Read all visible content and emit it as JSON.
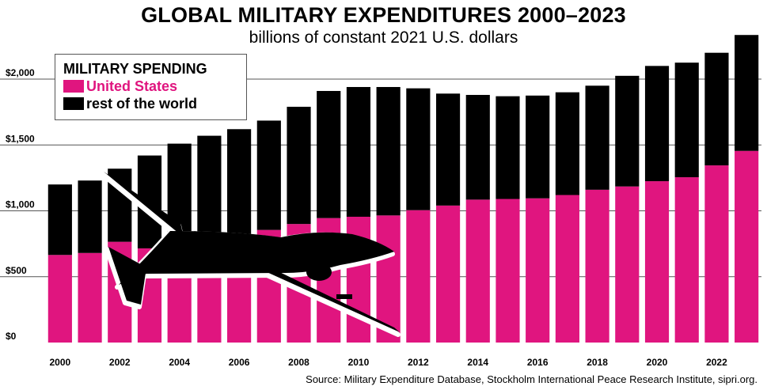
{
  "title": "GLOBAL MILITARY EXPENDITURES 2000–2023",
  "subtitle": "billions of constant 2021 U.S. dollars",
  "source": "Source: Military Expenditure Database, Stockholm International Peace Research Institute, sipri.org.",
  "legend": {
    "title": "MILITARY SPENDING",
    "items": [
      {
        "label": "United States",
        "color": "#e0157f"
      },
      {
        "label": "rest of the world",
        "color": "#000000"
      }
    ]
  },
  "colors": {
    "us": "#e0157f",
    "rest": "#000000"
  },
  "decoration": "drone-silhouette",
  "chart_data": {
    "type": "bar",
    "stacked": true,
    "x": [
      2000,
      2001,
      2002,
      2003,
      2004,
      2005,
      2006,
      2007,
      2008,
      2009,
      2010,
      2011,
      2012,
      2013,
      2014,
      2015,
      2016,
      2017,
      2018,
      2019,
      2020,
      2021,
      2022,
      2023
    ],
    "x_tick_labels": [
      "2000",
      "2002",
      "2004",
      "2006",
      "2008",
      "2010",
      "2012",
      "2014",
      "2016",
      "2018",
      "2020",
      "2022"
    ],
    "series": [
      {
        "name": "United States",
        "values": [
          665,
          680,
          765,
          715,
          750,
          760,
          810,
          855,
          900,
          945,
          955,
          965,
          1005,
          1040,
          1085,
          1090,
          1095,
          1120,
          1160,
          1185,
          1225,
          1255,
          1345,
          1455
        ]
      },
      {
        "name": "rest of the world",
        "values": [
          535,
          550,
          555,
          705,
          760,
          810,
          810,
          830,
          890,
          965,
          985,
          975,
          925,
          850,
          795,
          780,
          780,
          780,
          790,
          840,
          875,
          870,
          855,
          880
        ]
      }
    ],
    "y_tick_labels": [
      "$0",
      "$500",
      "$1,000",
      "$1,500",
      "$2,000"
    ],
    "y_ticks": [
      0,
      500,
      1000,
      1500,
      2000
    ],
    "ylim": [
      0,
      2400
    ],
    "grid": true,
    "legend_position": "top-left"
  }
}
